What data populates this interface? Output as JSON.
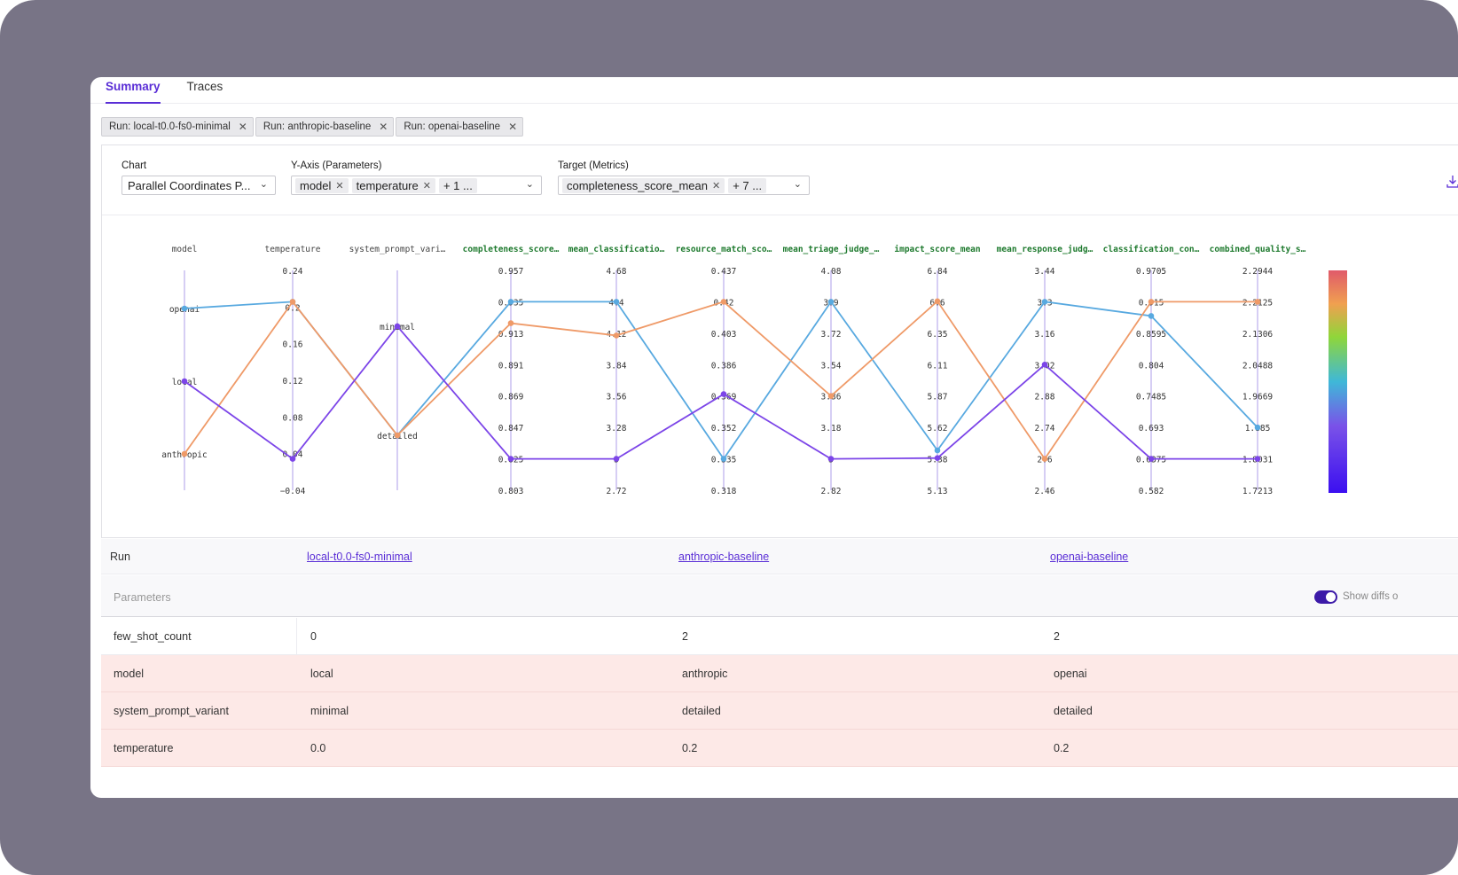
{
  "tabs": [
    {
      "label": "Summary",
      "active": true
    },
    {
      "label": "Traces",
      "active": false
    }
  ],
  "run_chips": [
    {
      "label": "Run: local-t0.0-fs0-minimal"
    },
    {
      "label": "Run: anthropic-baseline"
    },
    {
      "label": "Run: openai-baseline"
    }
  ],
  "controls": {
    "chart_label": "Chart",
    "chart_value": "Parallel Coordinates P...",
    "yaxis_label": "Y-Axis (Parameters)",
    "yaxis_tags": [
      "model",
      "temperature"
    ],
    "yaxis_more": "+ 1 ...",
    "target_label": "Target (Metrics)",
    "target_tags": [
      "completeness_score_mean"
    ],
    "target_more": "+ 7 ..."
  },
  "colors": {
    "openai": "#58a9e0",
    "anthropic": "#ef9a68",
    "local": "#7c45e8",
    "accent": "#5a2ed6"
  },
  "chart_data": {
    "type": "parallel-coordinates",
    "axes": [
      {
        "name": "model",
        "kind": "categorical",
        "categories": [
          "anthropic",
          "local",
          "openai"
        ],
        "metric": false
      },
      {
        "name": "temperature",
        "kind": "numeric",
        "ticks": [
          "0.24",
          "0.2",
          "0.16",
          "0.12",
          "0.08",
          "0.04",
          "−0.04"
        ],
        "range": [
          -0.04,
          0.24
        ],
        "metric": false
      },
      {
        "name": "system_prompt_vari…",
        "kind": "categorical",
        "categories": [
          "detailed",
          "minimal"
        ],
        "metric": false
      },
      {
        "name": "completeness_score…",
        "kind": "numeric",
        "ticks": [
          "0.957",
          "0.935",
          "0.913",
          "0.891",
          "0.869",
          "0.847",
          "0.825",
          "0.803"
        ],
        "range": [
          0.803,
          0.957
        ],
        "metric": true
      },
      {
        "name": "mean_classificatio…",
        "kind": "numeric",
        "ticks": [
          "4.68",
          "4.4",
          "4.12",
          "3.84",
          "3.56",
          "3.28",
          "3",
          "2.72"
        ],
        "range": [
          2.72,
          4.68
        ],
        "metric": true
      },
      {
        "name": "resource_match_sco…",
        "kind": "numeric",
        "ticks": [
          "0.437",
          "0.42",
          "0.403",
          "0.386",
          "0.369",
          "0.352",
          "0.335",
          "0.318"
        ],
        "range": [
          0.318,
          0.437
        ],
        "metric": true
      },
      {
        "name": "mean_triage_judge_…",
        "kind": "numeric",
        "ticks": [
          "4.08",
          "3.9",
          "3.72",
          "3.54",
          "3.36",
          "3.18",
          "3",
          "2.82"
        ],
        "range": [
          2.82,
          4.08
        ],
        "metric": true
      },
      {
        "name": "impact_score_mean",
        "kind": "numeric",
        "ticks": [
          "6.84",
          "6.6",
          "6.35",
          "6.11",
          "5.87",
          "5.62",
          "5.38",
          "5.13"
        ],
        "range": [
          5.13,
          6.84
        ],
        "metric": true
      },
      {
        "name": "mean_response_judg…",
        "kind": "numeric",
        "ticks": [
          "3.44",
          "3.3",
          "3.16",
          "3.02",
          "2.88",
          "2.74",
          "2.6",
          "2.46"
        ],
        "range": [
          2.46,
          3.44
        ],
        "metric": true
      },
      {
        "name": "classification_con…",
        "kind": "numeric",
        "ticks": [
          "0.9705",
          "0.915",
          "0.8595",
          "0.804",
          "0.7485",
          "0.693",
          "0.6375",
          "0.582"
        ],
        "range": [
          0.582,
          0.9705
        ],
        "metric": true
      },
      {
        "name": "combined_quality_s…",
        "kind": "numeric",
        "ticks": [
          "2.2944",
          "2.2125",
          "2.1306",
          "2.0488",
          "1.9669",
          "1.885",
          "1.8031",
          "1.7213"
        ],
        "range": [
          1.7213,
          2.2944
        ],
        "metric": true
      }
    ],
    "series": [
      {
        "name": "openai",
        "values": [
          "openai",
          0.2,
          "detailed",
          0.935,
          4.4,
          0.335,
          3.9,
          5.44,
          3.3,
          0.89,
          1.885
        ]
      },
      {
        "name": "anthropic",
        "values": [
          "anthropic",
          0.2,
          "detailed",
          0.92,
          4.1,
          0.42,
          3.36,
          6.6,
          2.6,
          0.915,
          2.2125
        ]
      },
      {
        "name": "local",
        "values": [
          "local",
          0.0,
          "minimal",
          0.825,
          3.0,
          0.37,
          3.0,
          5.38,
          3.02,
          0.6375,
          1.8031
        ]
      }
    ]
  },
  "runs": {
    "label": "Run",
    "names": [
      "local-t0.0-fs0-minimal",
      "anthropic-baseline",
      "openai-baseline"
    ]
  },
  "params": {
    "header": "Parameters",
    "show_diffs": "Show diffs o",
    "rows": [
      {
        "name": "few_shot_count",
        "values": [
          "0",
          "2",
          "2"
        ],
        "diff": false
      },
      {
        "name": "model",
        "values": [
          "local",
          "anthropic",
          "openai"
        ],
        "diff": true
      },
      {
        "name": "system_prompt_variant",
        "values": [
          "minimal",
          "detailed",
          "detailed"
        ],
        "diff": true
      },
      {
        "name": "temperature",
        "values": [
          "0.0",
          "0.2",
          "0.2"
        ],
        "diff": true
      }
    ]
  }
}
